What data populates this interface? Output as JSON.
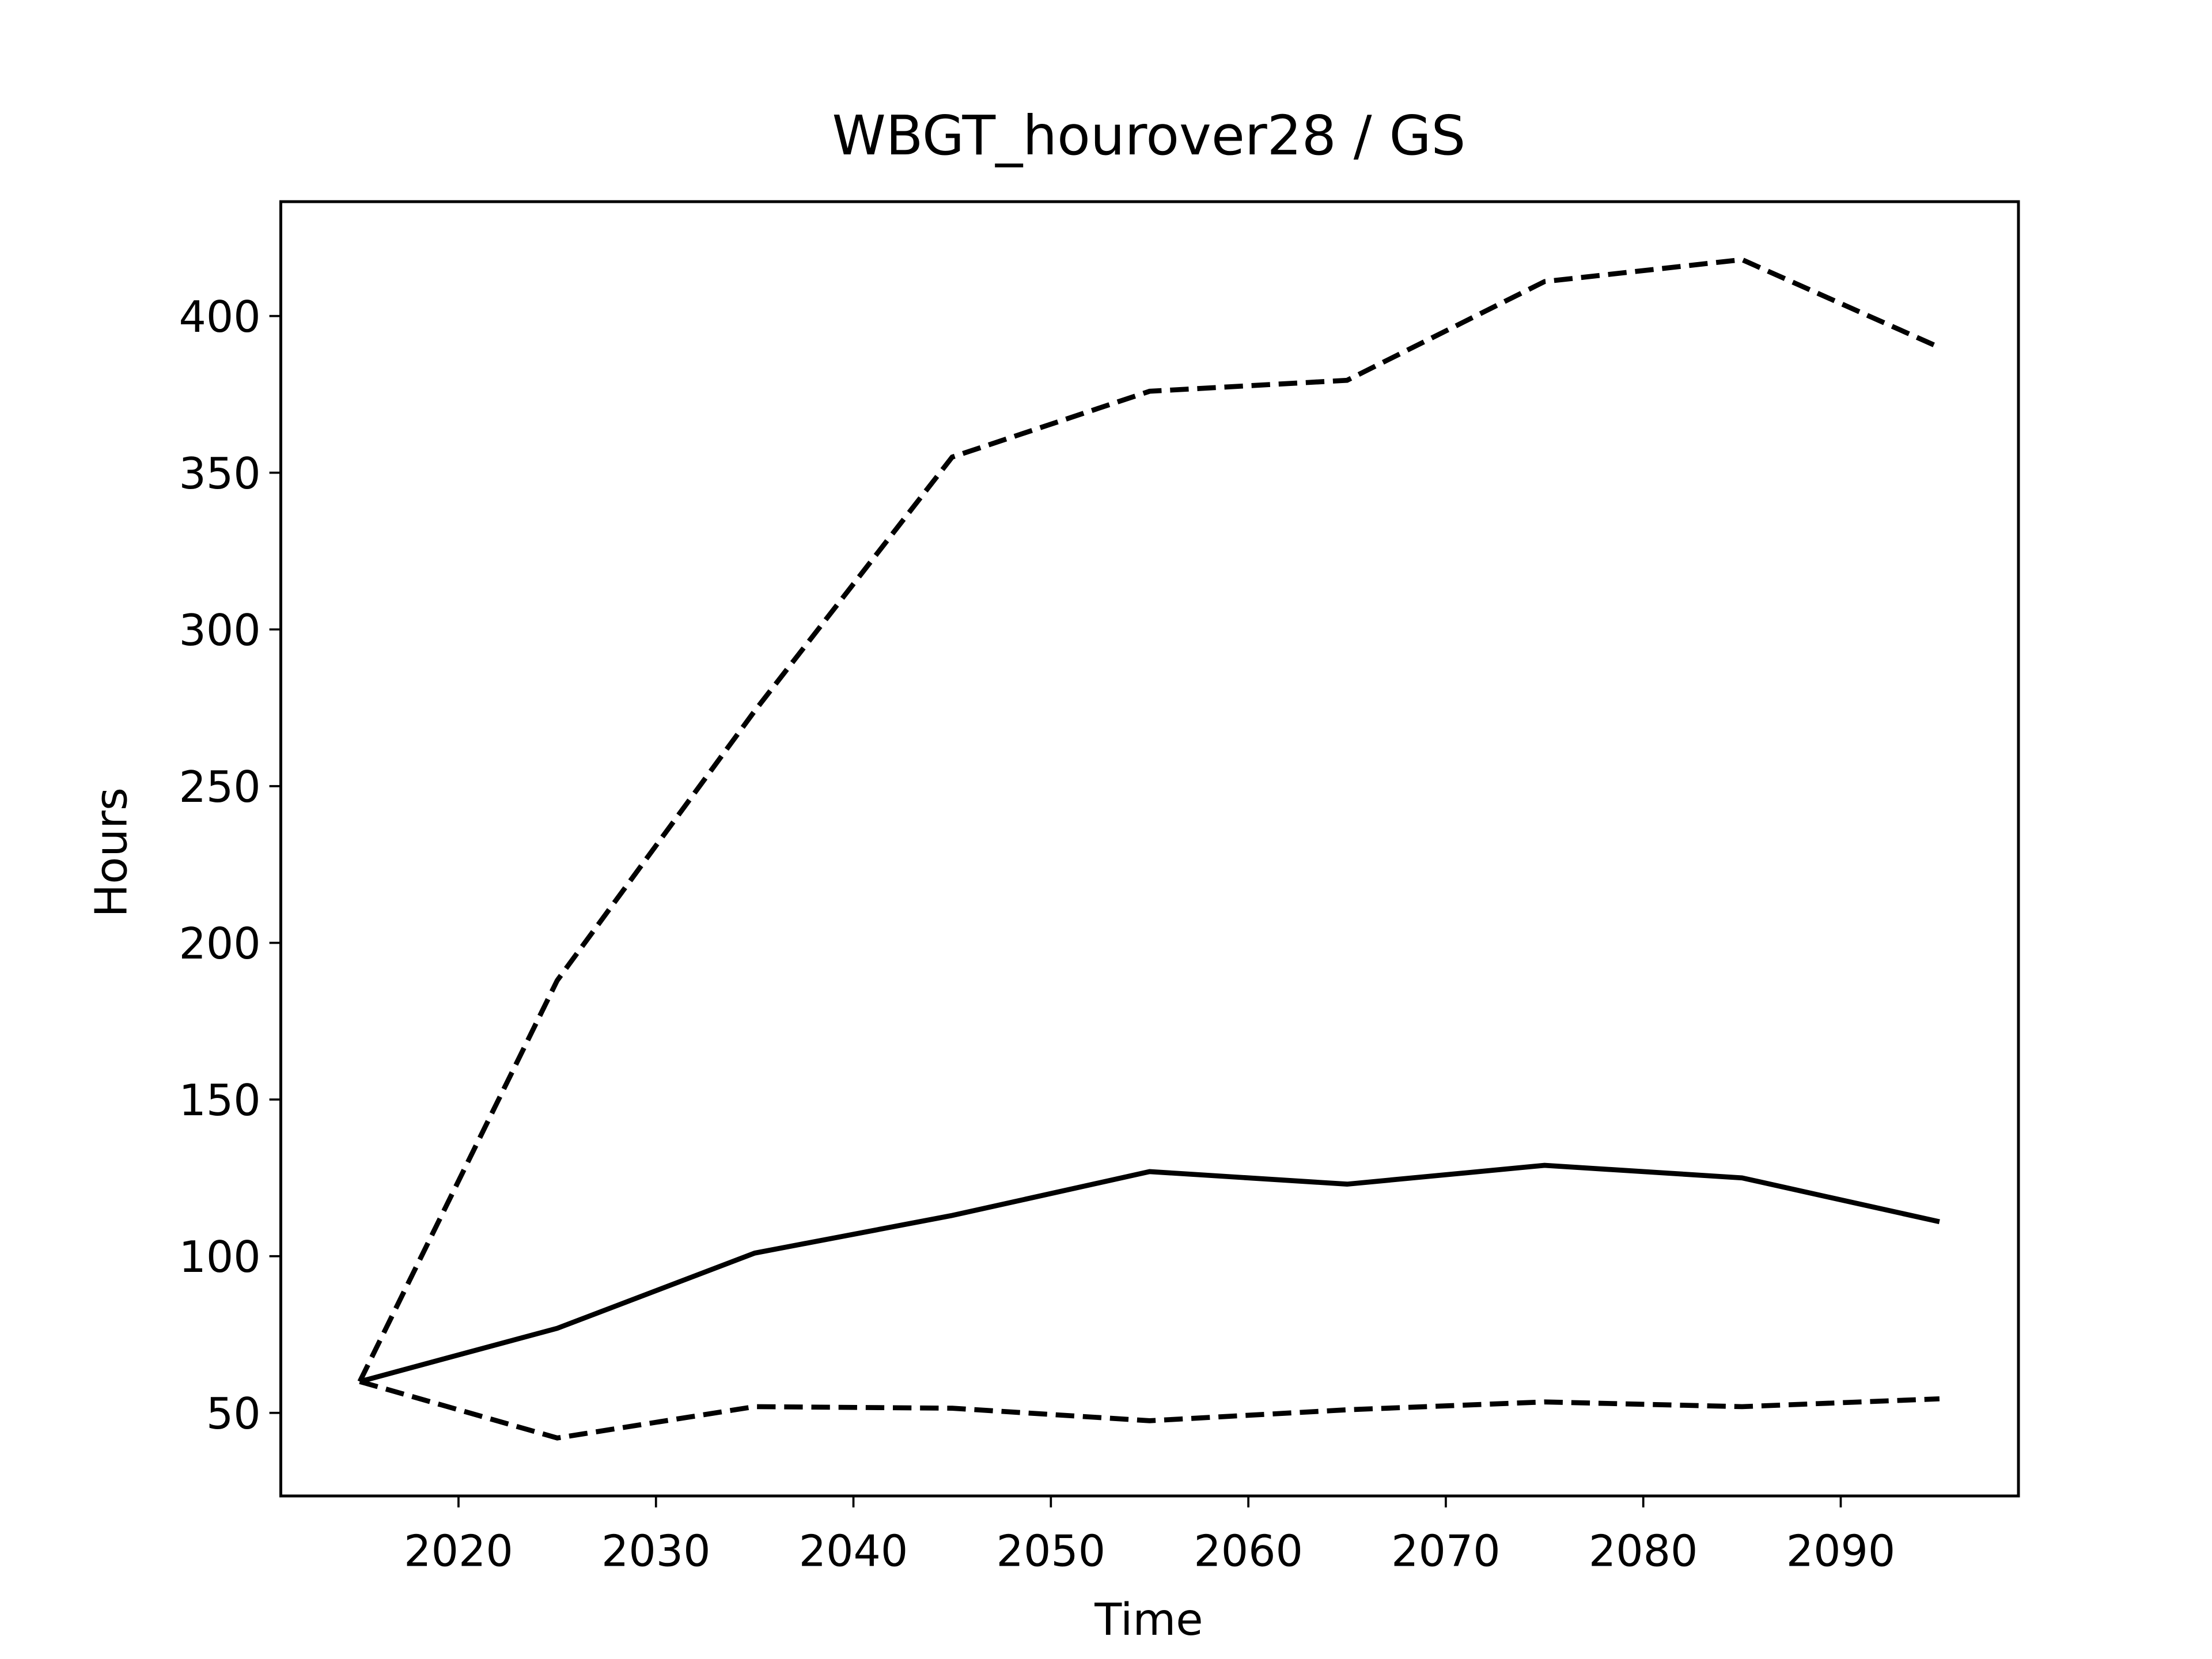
{
  "chart_data": {
    "type": "line",
    "title": "WBGT_hourover28 / GS",
    "x_label": "Time",
    "y_label": "Hours",
    "x": [
      2015,
      2025,
      2035,
      2045,
      2055,
      2065,
      2075,
      2085,
      2095
    ],
    "series": [
      {
        "color": "#000000",
        "dashed": true,
        "values": [
          60,
          188,
          274,
          355,
          376,
          379.5,
          411,
          418,
          390
        ]
      },
      {
        "color": "#000000",
        "dashed": false,
        "values": [
          60,
          77,
          101,
          113,
          127,
          123,
          129,
          125,
          111
        ]
      },
      {
        "color": "#000000",
        "dashed": true,
        "values": [
          60,
          42,
          52,
          51.5,
          47.5,
          51,
          53.5,
          52,
          54.5
        ]
      }
    ],
    "xlim": [
      2011,
      2099
    ],
    "ylim": [
      23.5,
      436.5
    ],
    "xticks": [
      2020,
      2030,
      2040,
      2050,
      2060,
      2070,
      2080,
      2090
    ],
    "yticks": [
      50,
      100,
      150,
      200,
      250,
      300,
      350,
      400
    ],
    "grid": false
  }
}
